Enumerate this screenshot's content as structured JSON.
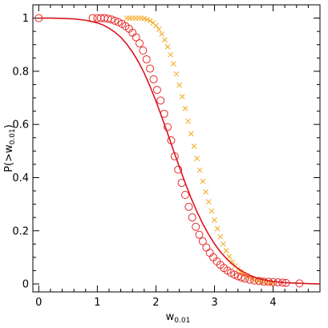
{
  "chart_data": {
    "type": "scatter",
    "title": "",
    "xlabel": "w",
    "xlabel_sub": "0.01",
    "ylabel": "P(>w",
    "ylabel_sub": "0.01",
    "ylabel_close": ")",
    "xlim": [
      -0.1,
      4.8
    ],
    "ylim": [
      -0.03,
      1.05
    ],
    "xticks": [
      0,
      1,
      2,
      3,
      4
    ],
    "xtick_labels": [
      "0",
      "1",
      "2",
      "3",
      "4"
    ],
    "yticks": [
      0,
      0.2,
      0.4,
      0.6,
      0.8,
      1
    ],
    "ytick_labels": [
      "0",
      "0.2",
      "0.4",
      "0.6",
      "0.8",
      "1"
    ],
    "grid": false,
    "legend": "none",
    "series": [
      {
        "marker": "circle",
        "color": "#e82a2a",
        "x": [
          0.0,
          0.92,
          1.0,
          1.06,
          1.12,
          1.18,
          1.24,
          1.3,
          1.36,
          1.42,
          1.48,
          1.54,
          1.6,
          1.66,
          1.72,
          1.78,
          1.84,
          1.9,
          1.96,
          2.02,
          2.08,
          2.14,
          2.2,
          2.26,
          2.32,
          2.38,
          2.44,
          2.5,
          2.56,
          2.62,
          2.68,
          2.74,
          2.8,
          2.86,
          2.92,
          2.98,
          3.04,
          3.1,
          3.16,
          3.22,
          3.28,
          3.34,
          3.4,
          3.46,
          3.52,
          3.6,
          3.68,
          3.76,
          3.84,
          3.92,
          4.0,
          4.08,
          4.16,
          4.22,
          4.45
        ],
        "y": [
          1.0,
          1.0,
          1.0,
          1.0,
          1.0,
          0.998,
          0.995,
          0.99,
          0.985,
          0.978,
          0.97,
          0.96,
          0.945,
          0.928,
          0.905,
          0.878,
          0.845,
          0.81,
          0.77,
          0.73,
          0.69,
          0.64,
          0.59,
          0.54,
          0.48,
          0.43,
          0.38,
          0.335,
          0.29,
          0.25,
          0.215,
          0.185,
          0.16,
          0.137,
          0.117,
          0.1,
          0.085,
          0.072,
          0.06,
          0.05,
          0.042,
          0.035,
          0.029,
          0.024,
          0.02,
          0.016,
          0.013,
          0.011,
          0.009,
          0.008,
          0.007,
          0.006,
          0.005,
          0.004,
          0.002
        ]
      },
      {
        "marker": "cross",
        "color": "#f4a81c",
        "x": [
          1.5,
          1.55,
          1.6,
          1.65,
          1.7,
          1.75,
          1.8,
          1.85,
          1.9,
          1.95,
          2.0,
          2.05,
          2.1,
          2.15,
          2.2,
          2.25,
          2.3,
          2.35,
          2.4,
          2.45,
          2.5,
          2.55,
          2.6,
          2.65,
          2.7,
          2.75,
          2.8,
          2.85,
          2.9,
          2.95,
          3.0,
          3.05,
          3.1,
          3.15,
          3.2,
          3.25,
          3.3,
          3.35,
          3.4,
          3.45,
          3.5,
          3.55,
          3.6,
          3.65,
          3.7,
          3.75,
          3.8,
          3.85,
          3.9,
          3.95,
          4.0
        ],
        "y": [
          1.0,
          1.0,
          1.0,
          1.0,
          1.0,
          1.0,
          0.998,
          0.995,
          0.99,
          0.982,
          0.972,
          0.958,
          0.94,
          0.918,
          0.892,
          0.862,
          0.828,
          0.79,
          0.748,
          0.705,
          0.66,
          0.612,
          0.565,
          0.518,
          0.472,
          0.428,
          0.386,
          0.346,
          0.309,
          0.274,
          0.24,
          0.208,
          0.178,
          0.15,
          0.125,
          0.103,
          0.084,
          0.068,
          0.055,
          0.045,
          0.037,
          0.03,
          0.024,
          0.019,
          0.015,
          0.012,
          0.01,
          0.008,
          0.006,
          0.005,
          0.004
        ]
      },
      {
        "marker": "line",
        "color": "#d8161f",
        "x": [
          0.0,
          0.2,
          0.4,
          0.6,
          0.8,
          1.0,
          1.1,
          1.2,
          1.3,
          1.4,
          1.5,
          1.6,
          1.7,
          1.8,
          1.9,
          2.0,
          2.1,
          2.2,
          2.3,
          2.4,
          2.5,
          2.6,
          2.7,
          2.8,
          2.9,
          3.0,
          3.1,
          3.2,
          3.3,
          3.4,
          3.5,
          3.6,
          3.7,
          3.8,
          3.9,
          4.0,
          4.2,
          4.4,
          4.6,
          4.8
        ],
        "y": [
          1.0,
          1.0,
          0.999,
          0.997,
          0.992,
          0.982,
          0.974,
          0.962,
          0.947,
          0.928,
          0.903,
          0.872,
          0.836,
          0.793,
          0.743,
          0.688,
          0.628,
          0.566,
          0.502,
          0.44,
          0.38,
          0.323,
          0.272,
          0.226,
          0.186,
          0.151,
          0.121,
          0.096,
          0.075,
          0.058,
          0.044,
          0.033,
          0.024,
          0.018,
          0.013,
          0.009,
          0.005,
          0.003,
          0.001,
          0.0
        ]
      }
    ]
  }
}
